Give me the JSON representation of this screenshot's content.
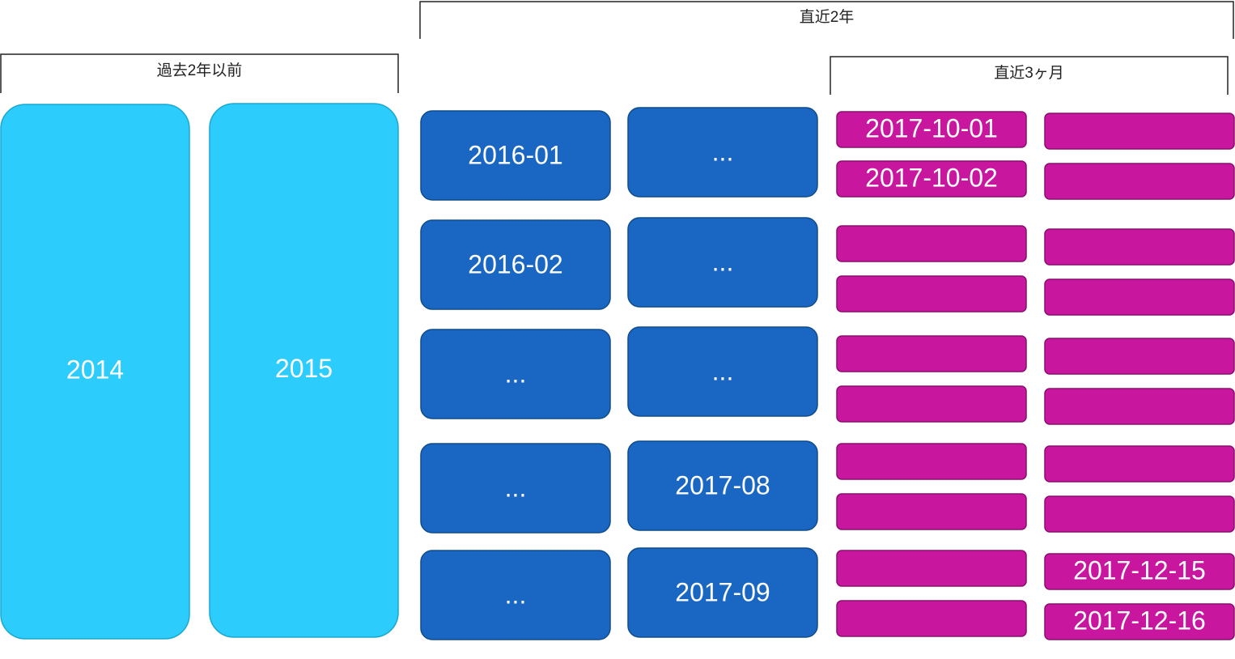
{
  "brackets": [
    "過去2年以前",
    "直近2年",
    "直近3ヶ月"
  ],
  "years": [
    "2014",
    "2015"
  ],
  "months": [
    [
      "2016-01",
      "2016-02",
      "...",
      "...",
      "..."
    ],
    [
      "...",
      "...",
      "...",
      "2017-08",
      "2017-09"
    ]
  ],
  "days": {
    "first": [
      "2017-10-01",
      "2017-10-02"
    ],
    "last": [
      "2017-12-15",
      "2017-12-16"
    ]
  }
}
